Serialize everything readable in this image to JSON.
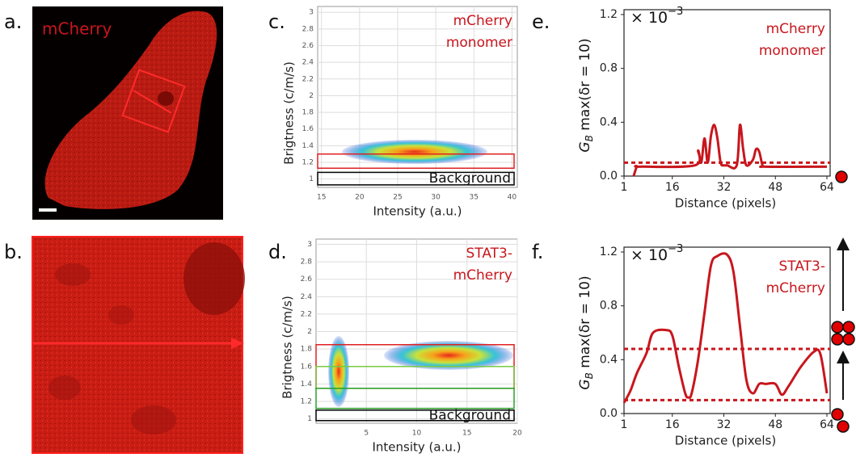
{
  "panel_labels": [
    "a.",
    "b.",
    "c.",
    "d.",
    "e.",
    "f."
  ],
  "image_label": "mCherry",
  "chart_data": [
    {
      "type": "density",
      "xlabel": "Intensity (a.u.)",
      "ylabel": "Brigtness (c/m/s)",
      "annotation": [
        "mCherry",
        "monomer"
      ],
      "xlim": [
        14.5,
        40.7
      ],
      "xticks": [
        15,
        20,
        25,
        30,
        35,
        40
      ],
      "ylim": [
        0.9,
        3.07
      ],
      "yticks": [
        1,
        1.2,
        1.4,
        1.6,
        1.8,
        2,
        2.2,
        2.4,
        2.6,
        2.8,
        3
      ],
      "grid": true,
      "gates": [
        {
          "color": "#e02020",
          "y": [
            1.13,
            1.3
          ]
        },
        {
          "color": "#000000",
          "y": [
            0.93,
            1.08
          ],
          "label": "Background"
        }
      ]
    },
    {
      "type": "density",
      "xlabel": "Intensity (a.u.)",
      "ylabel": "Brigtness (c/m/s)",
      "annotation": [
        "STAT3-",
        "mCherry"
      ],
      "xlim": [
        0,
        20
      ],
      "xticks": [
        5,
        10,
        15,
        20
      ],
      "ylim": [
        0.95,
        3.06
      ],
      "yticks": [
        1,
        1.2,
        1.4,
        1.6,
        1.8,
        2,
        2.2,
        2.4,
        2.6,
        2.8,
        3
      ],
      "grid": true,
      "gates": [
        {
          "color": "#e02020",
          "y": [
            1.35,
            1.85
          ]
        },
        {
          "color": "#7ac943",
          "y": [
            1.35,
            1.6
          ]
        },
        {
          "color": "#2aa02a",
          "y": [
            1.12,
            1.35
          ]
        },
        {
          "color": "#000000",
          "y": [
            0.98,
            1.1
          ],
          "label": "Background"
        }
      ]
    },
    {
      "type": "line",
      "xlabel": "Distance (pixels)",
      "ylabel": {
        "main": "G",
        "sub": "B",
        "rest": " max(δr = 10)"
      },
      "multiplier": {
        "base": "× 10",
        "exp": "−3"
      },
      "annotation": [
        "mCherry",
        "monomer"
      ],
      "color": "#c8161d",
      "xlim": [
        1,
        64
      ],
      "xticks": [
        1,
        16,
        32,
        48,
        64
      ],
      "ylim": [
        0,
        1.2
      ],
      "yticks": [
        {
          "value": 0,
          "label": "0.0"
        },
        0.4,
        0.8,
        1.2
      ],
      "thresholds": [
        0.1
      ],
      "x": [
        4,
        5,
        6,
        23,
        24,
        25,
        26,
        27,
        28,
        29,
        30,
        31,
        32,
        33,
        36,
        37,
        38,
        39,
        41,
        42,
        43,
        44,
        45,
        64
      ],
      "values": [
        0,
        0.07,
        0.07,
        0.08,
        0.19,
        0.1,
        0.28,
        0.1,
        0.3,
        0.38,
        0.28,
        0.1,
        0.08,
        0.08,
        0.08,
        0.38,
        0.2,
        0.08,
        0.12,
        0.2,
        0.18,
        0.08,
        0.07,
        0.07
      ]
    },
    {
      "type": "line",
      "xlabel": "Distance (pixels)",
      "ylabel": {
        "main": "G",
        "sub": "B",
        "rest": " max(δr = 10)"
      },
      "multiplier": {
        "base": "× 10",
        "exp": "−3"
      },
      "annotation": [
        "STAT3-",
        "mCherry"
      ],
      "color": "#c8161d",
      "xlim": [
        1,
        64
      ],
      "xticks": [
        1,
        16,
        32,
        48,
        64
      ],
      "ylim": [
        0,
        1.2
      ],
      "yticks": [
        {
          "value": 0,
          "label": "0.0"
        },
        0.4,
        0.8,
        1.2
      ],
      "thresholds": [
        0.48,
        0.1
      ],
      "x": [
        1,
        3,
        5,
        8,
        10,
        14,
        16,
        18,
        20,
        21,
        22,
        24,
        26,
        28,
        30,
        33,
        35,
        37,
        39,
        41,
        43,
        45,
        48,
        50,
        52,
        56,
        60,
        62,
        64
      ],
      "values": [
        0.08,
        0.17,
        0.3,
        0.45,
        0.6,
        0.62,
        0.58,
        0.35,
        0.15,
        0.12,
        0.15,
        0.4,
        0.75,
        1.1,
        1.17,
        1.18,
        1.05,
        0.65,
        0.25,
        0.15,
        0.22,
        0.22,
        0.22,
        0.14,
        0.2,
        0.35,
        0.46,
        0.44,
        0.15
      ]
    }
  ]
}
